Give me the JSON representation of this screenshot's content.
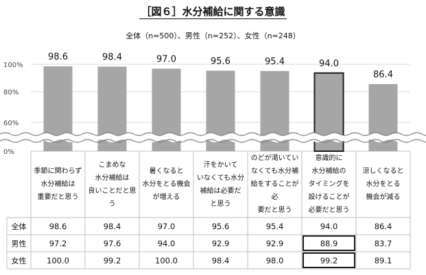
{
  "title": "［図６］水分補給に関する意識",
  "subtitle": "全体（n=500）、男性（n=252）、女性（n=248）",
  "chart_data": {
    "type": "bar",
    "title": "［図６］水分補給に関する意識",
    "subtitle": "全体（n=500）、男性（n=252）、女性（n=248）",
    "categories": [
      "季節に関わらず水分補給は重要だと思う",
      "こまめな水分補給は良いことだと思う",
      "暑くなると水分をとる機会が増える",
      "汗をかいていなくても水分補給は必要だと思う",
      "のどが渇いていなくても水分補給をすることが必要だと思う",
      "意識的に水分補給のタイミングを設けることが必要だと思う",
      "涼しくなると水分をとる機会が減る"
    ],
    "category_lines": [
      [
        "季節に関わらず",
        "水分補給は",
        "重要だと思う"
      ],
      [
        "こまめな",
        "水分補給は",
        "良いことだと思う"
      ],
      [
        "暑くなると",
        "水分をとる機会",
        "が増える"
      ],
      [
        "汗をかいて",
        "いなくても水分",
        "補給は必要だ",
        "と思う"
      ],
      [
        "のどが渇いてい",
        "なくても水分補",
        "給をすることが必",
        "要だと思う"
      ],
      [
        "意識的に",
        "水分補給の",
        "タイミングを",
        "設けることが",
        "必要だと思う"
      ],
      [
        "涼しくなると",
        "水分をとる",
        "機会が減る"
      ]
    ],
    "series": [
      {
        "name": "全体",
        "values": [
          98.6,
          98.4,
          97.0,
          95.6,
          95.4,
          94.0,
          86.4
        ]
      },
      {
        "name": "男性",
        "values": [
          97.2,
          97.6,
          94.0,
          92.9,
          92.9,
          88.9,
          83.7
        ]
      },
      {
        "name": "女性",
        "values": [
          100.0,
          99.2,
          100.0,
          98.4,
          98.0,
          99.2,
          89.1
        ]
      }
    ],
    "value_labels": [
      "98.6",
      "98.4",
      "97.0",
      "95.6",
      "95.4",
      "94.0",
      "86.4"
    ],
    "table_values": [
      [
        "98.6",
        "98.4",
        "97.0",
        "95.6",
        "95.4",
        "94.0",
        "86.4"
      ],
      [
        "97.2",
        "97.6",
        "94.0",
        "92.9",
        "92.9",
        "88.9",
        "83.7"
      ],
      [
        "100.0",
        "99.2",
        "100.0",
        "98.4",
        "98.0",
        "99.2",
        "89.1"
      ]
    ],
    "y_ticks": [
      "100%",
      "80%",
      "60%",
      "0%"
    ],
    "ylim": [
      0,
      100
    ],
    "axis_break": "between 0% and 60%",
    "grid": true,
    "highlight_category": 5,
    "highlight_rows": [
      1,
      2
    ],
    "bar_color": "#a6a6a6",
    "highlight_border_color": "#1a1a1a"
  }
}
